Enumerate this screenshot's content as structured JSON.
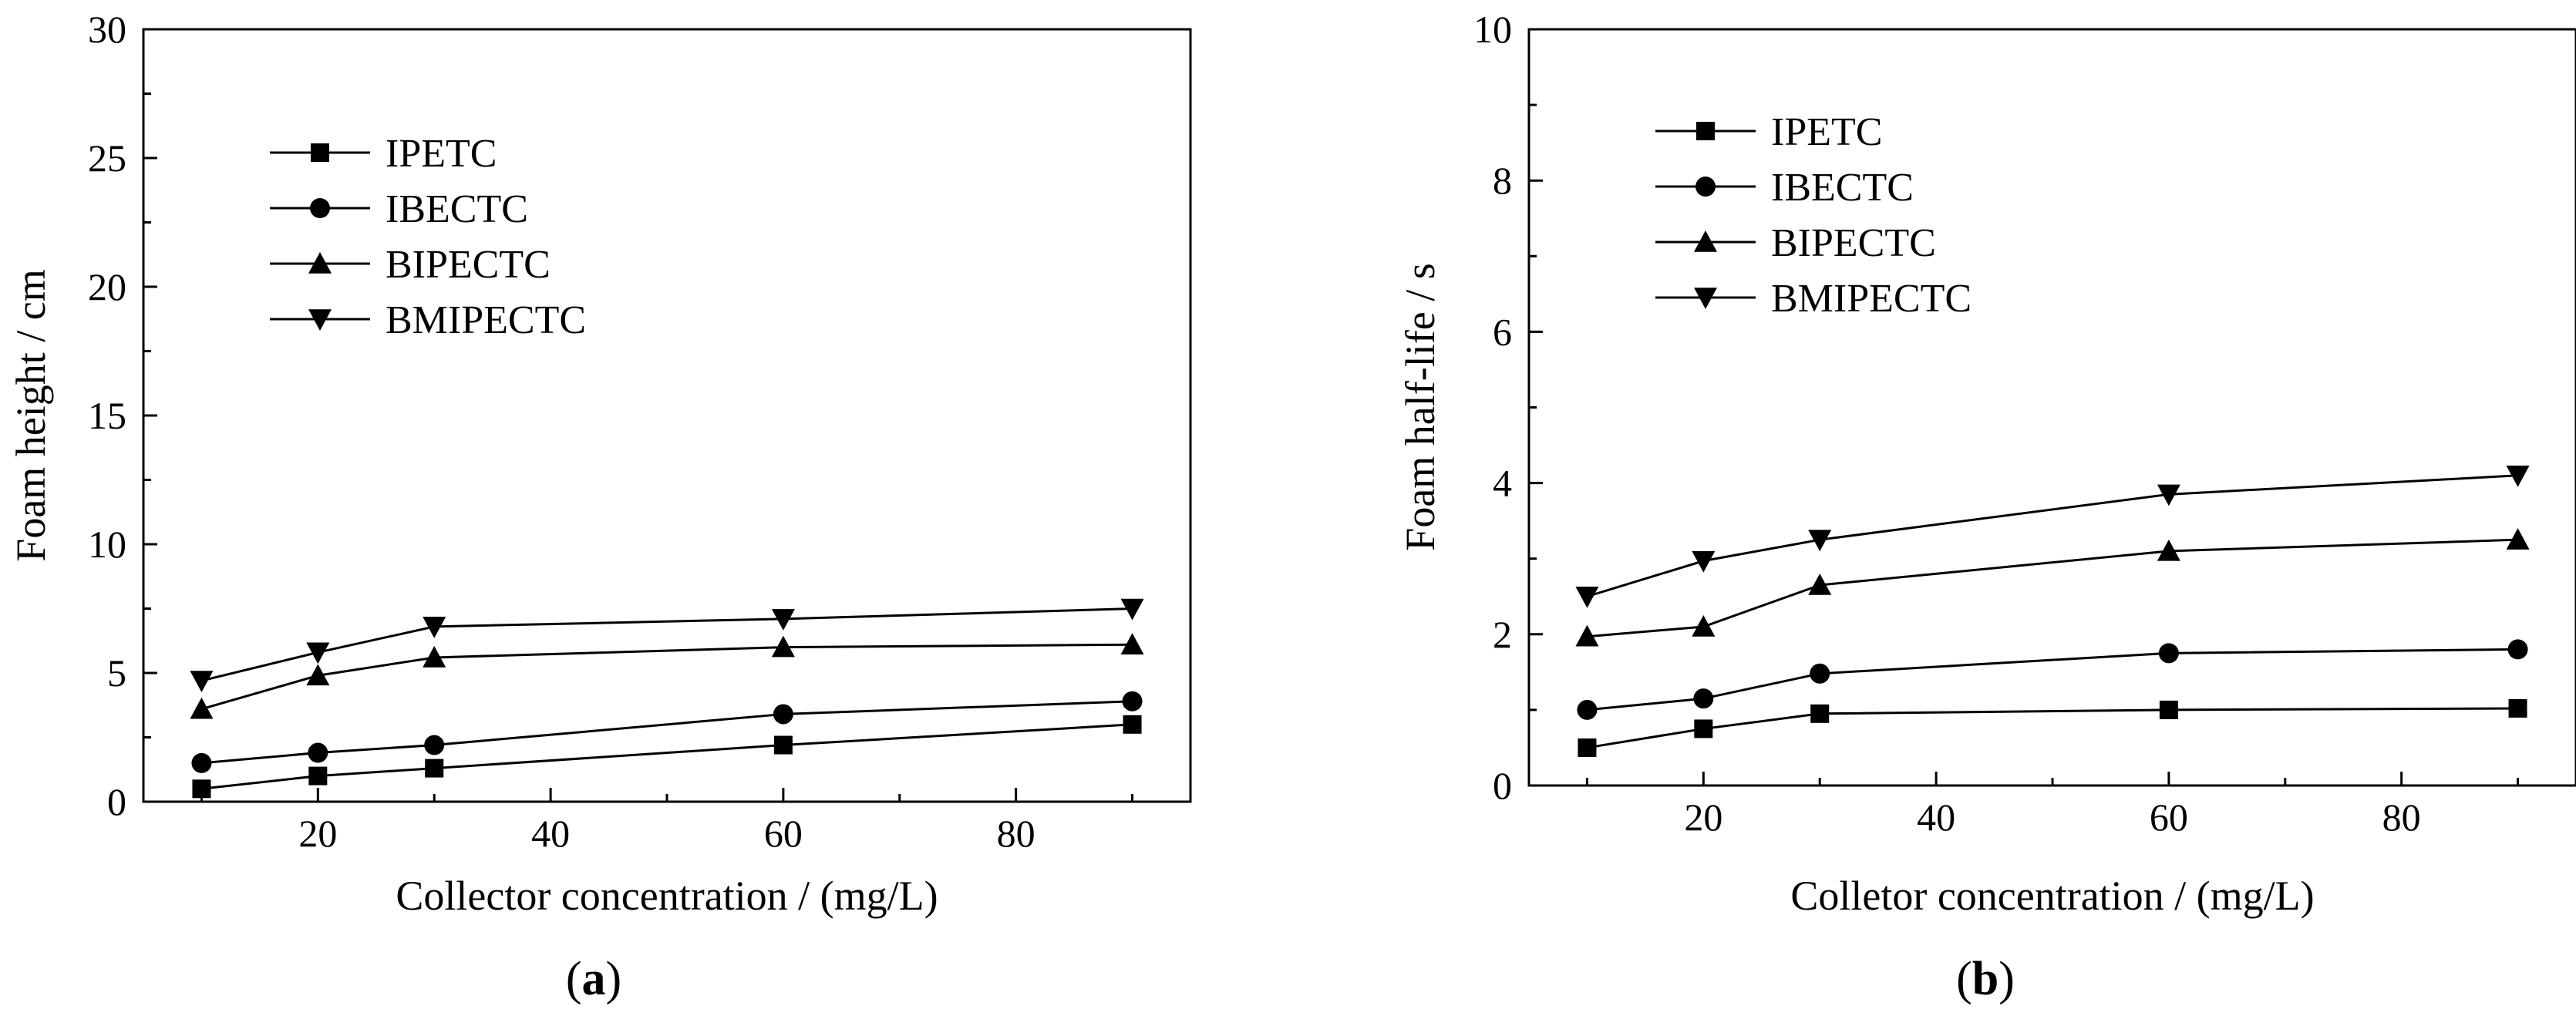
{
  "chart_data": [
    {
      "type": "line",
      "panel_label_prefix": "(",
      "panel_label_letter": "a",
      "panel_label_suffix": ")",
      "xlabel": "Collector concentration / (mg/L)",
      "ylabel": "Foam height / cm",
      "xlim": [
        5,
        95
      ],
      "ylim": [
        0,
        30
      ],
      "xticks": [
        20,
        40,
        60,
        80
      ],
      "yticks": [
        0,
        5,
        10,
        15,
        20,
        25,
        30
      ],
      "x": [
        10,
        20,
        30,
        60,
        90
      ],
      "legend_position": "top-left",
      "series": [
        {
          "name": "IPETC",
          "marker": "square",
          "values": [
            0.5,
            1.0,
            1.3,
            2.2,
            3.0
          ]
        },
        {
          "name": "IBECTC",
          "marker": "circle",
          "values": [
            1.5,
            1.9,
            2.2,
            3.4,
            3.9
          ]
        },
        {
          "name": "BIPECTC",
          "marker": "triangle-up",
          "values": [
            3.6,
            4.9,
            5.6,
            6.0,
            6.1
          ]
        },
        {
          "name": "BMIPECTC",
          "marker": "triangle-down",
          "values": [
            4.7,
            5.8,
            6.8,
            7.1,
            7.5
          ]
        }
      ]
    },
    {
      "type": "line",
      "panel_label_prefix": "(",
      "panel_label_letter": "b",
      "panel_label_suffix": ")",
      "xlabel": "Colletor concentration / (mg/L)",
      "ylabel": "Foam half-life / s",
      "xlim": [
        5,
        95
      ],
      "ylim": [
        0,
        10
      ],
      "xticks": [
        20,
        40,
        60,
        80
      ],
      "yticks": [
        0,
        2,
        4,
        6,
        8,
        10
      ],
      "x": [
        10,
        20,
        30,
        60,
        90
      ],
      "legend_position": "top-left",
      "series": [
        {
          "name": "IPETC",
          "marker": "square",
          "values": [
            0.5,
            0.75,
            0.95,
            1.0,
            1.02
          ]
        },
        {
          "name": "IBECTC",
          "marker": "circle",
          "values": [
            1.0,
            1.15,
            1.48,
            1.75,
            1.8
          ]
        },
        {
          "name": "BIPECTC",
          "marker": "triangle-up",
          "values": [
            1.97,
            2.1,
            2.65,
            3.1,
            3.25
          ]
        },
        {
          "name": "BMIPECTC",
          "marker": "triangle-down",
          "values": [
            2.5,
            2.97,
            3.25,
            3.85,
            4.1
          ]
        }
      ]
    }
  ]
}
